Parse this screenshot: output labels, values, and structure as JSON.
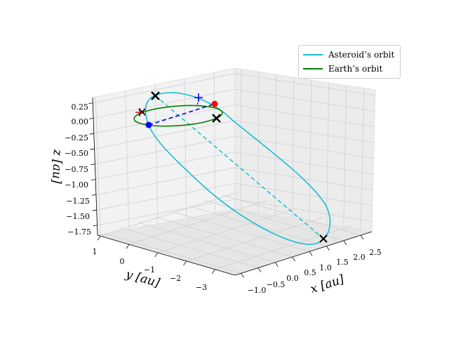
{
  "chart_data": {
    "type": "line3d",
    "title": "",
    "xlabel": "x [au]",
    "ylabel": "y [au]",
    "zlabel": "z [au]",
    "x_ticks": [
      "−1.0",
      "−0.5",
      "0.0",
      "0.5",
      "1.0",
      "1.5",
      "2.0",
      "2.5"
    ],
    "y_ticks": [
      "1",
      "0",
      "−1",
      "−2",
      "−3"
    ],
    "z_ticks": [
      "0.25",
      "0.00",
      "−0.25",
      "−0.50",
      "−0.75",
      "−1.00",
      "−1.25",
      "−1.50",
      "−1.75"
    ],
    "xlim": [
      -1.2,
      2.7
    ],
    "ylim": [
      -3.5,
      1.5
    ],
    "zlim": [
      -1.8,
      0.3
    ],
    "legend_position": "top-right",
    "series": [
      {
        "name": "Asteroid’s orbit",
        "color": "#17becf",
        "style": "solid"
      },
      {
        "name": "Earth’s orbit",
        "color": "#008000",
        "style": "solid"
      }
    ],
    "colors": {
      "asteroid": "#17becf",
      "earth": "#008000",
      "node_line": "#0000ff",
      "blue_point": "#0000ff",
      "red_point": "#ff0000",
      "cross": "#000000"
    },
    "markers": [
      {
        "name": "apsis-cross-near",
        "shape": "x"
      },
      {
        "name": "earth-cross",
        "shape": "x"
      },
      {
        "name": "node-cross",
        "shape": "x"
      },
      {
        "name": "apsis-cross-far",
        "shape": "x"
      },
      {
        "name": "red-point",
        "shape": "dot"
      },
      {
        "name": "blue-point",
        "shape": "dot"
      },
      {
        "name": "red-plus",
        "shape": "plus"
      },
      {
        "name": "blue-plus",
        "shape": "plus"
      }
    ]
  }
}
